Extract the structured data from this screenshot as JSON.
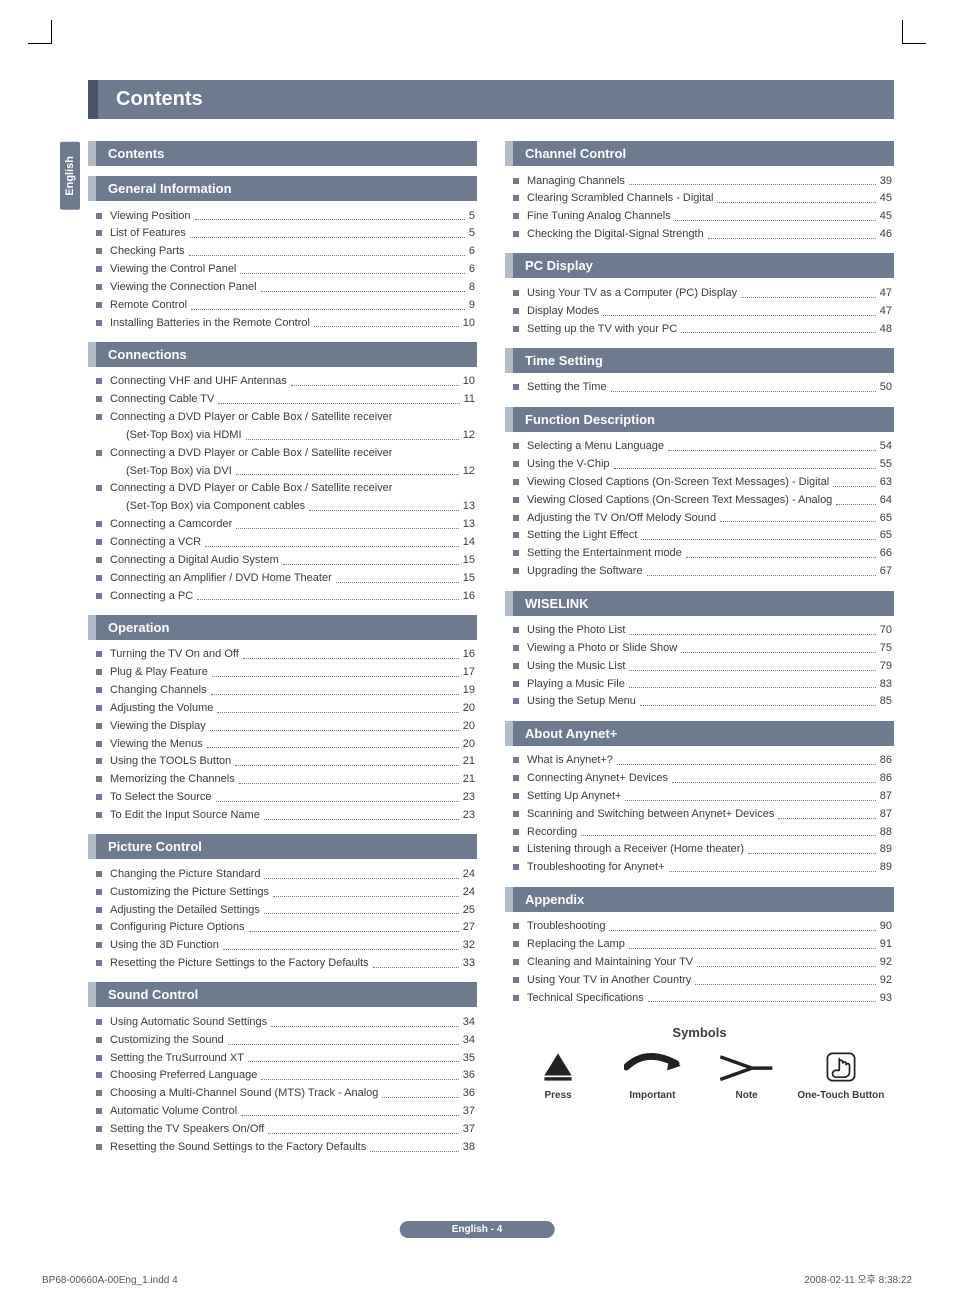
{
  "lang_tab": "English",
  "title": "Contents",
  "footer_pill": "English - 4",
  "print_footer_left": "BP68-00660A-00Eng_1.indd   4",
  "print_footer_right": "2008-02-11   오후 8:38:22",
  "symbols": {
    "heading": "Symbols",
    "items": [
      {
        "label": "Press"
      },
      {
        "label": "Important"
      },
      {
        "label": "Note"
      },
      {
        "label": "One-Touch Button"
      }
    ]
  },
  "left": [
    {
      "head": "Contents",
      "items": []
    },
    {
      "head": "General Information",
      "items": [
        {
          "t": "Viewing Position",
          "p": "5"
        },
        {
          "t": "List of Features",
          "p": "5"
        },
        {
          "t": "Checking Parts",
          "p": "6"
        },
        {
          "t": "Viewing the Control Panel",
          "p": "6"
        },
        {
          "t": "Viewing the Connection Panel",
          "p": "8"
        },
        {
          "t": "Remote Control",
          "p": "9"
        },
        {
          "t": "Installing Batteries in the Remote Control",
          "p": "10"
        }
      ]
    },
    {
      "head": "Connections",
      "items": [
        {
          "t": "Connecting VHF and UHF Antennas",
          "p": "10"
        },
        {
          "t": "Connecting Cable TV",
          "p": "11"
        },
        {
          "t": "Connecting a DVD Player or Cable Box / Satellite receiver",
          "nopage": true
        },
        {
          "t": "(Set-Top Box) via HDMI",
          "p": "12",
          "sub": true
        },
        {
          "t": "Connecting a DVD Player or Cable Box / Satellite receiver",
          "nopage": true
        },
        {
          "t": "(Set-Top Box) via DVI",
          "p": "12",
          "sub": true
        },
        {
          "t": "Connecting a DVD Player or Cable Box / Satellite receiver",
          "nopage": true
        },
        {
          "t": "(Set-Top Box) via Component cables",
          "p": "13",
          "sub": true
        },
        {
          "t": "Connecting a Camcorder",
          "p": "13"
        },
        {
          "t": "Connecting a VCR",
          "p": "14"
        },
        {
          "t": "Connecting a Digital Audio System",
          "p": "15"
        },
        {
          "t": "Connecting an Amplifier / DVD Home Theater",
          "p": "15"
        },
        {
          "t": "Connecting a PC",
          "p": "16"
        }
      ]
    },
    {
      "head": "Operation",
      "items": [
        {
          "t": "Turning the TV On and Off",
          "p": "16"
        },
        {
          "t": "Plug & Play Feature",
          "p": "17"
        },
        {
          "t": "Changing Channels",
          "p": "19"
        },
        {
          "t": "Adjusting the Volume",
          "p": "20"
        },
        {
          "t": "Viewing the Display",
          "p": "20"
        },
        {
          "t": "Viewing the Menus",
          "p": "20"
        },
        {
          "t": "Using the TOOLS Button",
          "p": "21"
        },
        {
          "t": "Memorizing the Channels",
          "p": "21"
        },
        {
          "t": "To Select the Source",
          "p": "23"
        },
        {
          "t": "To Edit the Input Source Name",
          "p": "23"
        }
      ]
    },
    {
      "head": "Picture Control",
      "items": [
        {
          "t": "Changing the Picture Standard",
          "p": "24"
        },
        {
          "t": "Customizing the Picture Settings",
          "p": "24"
        },
        {
          "t": "Adjusting the Detailed Settings",
          "p": "25"
        },
        {
          "t": "Configuring Picture Options",
          "p": "27"
        },
        {
          "t": "Using the 3D Function",
          "p": "32"
        },
        {
          "t": "Resetting the Picture Settings to the Factory Defaults",
          "p": "33"
        }
      ]
    },
    {
      "head": "Sound Control",
      "items": [
        {
          "t": "Using Automatic Sound Settings",
          "p": "34"
        },
        {
          "t": "Customizing the Sound",
          "p": "34"
        },
        {
          "t": "Setting the TruSurround XT",
          "p": "35"
        },
        {
          "t": "Choosing Preferred Language",
          "p": "36"
        },
        {
          "t": "Choosing a Multi-Channel Sound (MTS) Track - Analog",
          "p": "36"
        },
        {
          "t": "Automatic Volume Control",
          "p": "37"
        },
        {
          "t": "Setting the TV Speakers On/Off",
          "p": "37"
        },
        {
          "t": "Resetting the Sound Settings to the Factory Defaults",
          "p": "38"
        }
      ]
    }
  ],
  "right": [
    {
      "head": "Channel Control",
      "items": [
        {
          "t": "Managing Channels",
          "p": "39"
        },
        {
          "t": "Clearing Scrambled Channels - Digital",
          "p": "45"
        },
        {
          "t": "Fine Tuning Analog Channels",
          "p": "45"
        },
        {
          "t": "Checking the Digital-Signal Strength",
          "p": "46"
        }
      ]
    },
    {
      "head": "PC Display",
      "items": [
        {
          "t": "Using Your TV as a Computer (PC) Display",
          "p": "47"
        },
        {
          "t": "Display Modes",
          "p": "47"
        },
        {
          "t": "Setting up the TV with your PC",
          "p": "48"
        }
      ]
    },
    {
      "head": "Time Setting",
      "items": [
        {
          "t": "Setting the Time",
          "p": "50"
        }
      ]
    },
    {
      "head": "Function Description",
      "items": [
        {
          "t": "Selecting a Menu Language",
          "p": "54"
        },
        {
          "t": "Using the V-Chip",
          "p": "55"
        },
        {
          "t": "Viewing Closed Captions (On-Screen Text Messages) - Digital",
          "p": "63"
        },
        {
          "t": "Viewing Closed Captions (On-Screen Text Messages) - Analog",
          "p": "64"
        },
        {
          "t": "Adjusting the TV On/Off Melody Sound",
          "p": "65"
        },
        {
          "t": "Setting the Light Effect",
          "p": "65"
        },
        {
          "t": "Setting the Entertainment mode",
          "p": "66"
        },
        {
          "t": "Upgrading the Software",
          "p": "67"
        }
      ]
    },
    {
      "head": "WISELINK",
      "items": [
        {
          "t": "Using the Photo List",
          "p": "70"
        },
        {
          "t": "Viewing a Photo or Slide Show",
          "p": "75"
        },
        {
          "t": "Using the Music List",
          "p": "79"
        },
        {
          "t": "Playing a Music File",
          "p": "83"
        },
        {
          "t": "Using the Setup Menu",
          "p": "85"
        }
      ]
    },
    {
      "head": "About Anynet+",
      "items": [
        {
          "t": "What is Anynet+?",
          "p": "86"
        },
        {
          "t": "Connecting Anynet+ Devices",
          "p": "86"
        },
        {
          "t": "Setting Up Anynet+",
          "p": "87"
        },
        {
          "t": "Scanning and Switching between Anynet+ Devices",
          "p": "87"
        },
        {
          "t": "Recording",
          "p": "88"
        },
        {
          "t": "Listening through a Receiver (Home theater)",
          "p": "89"
        },
        {
          "t": "Troubleshooting for Anynet+",
          "p": "89"
        }
      ]
    },
    {
      "head": "Appendix",
      "items": [
        {
          "t": "Troubleshooting",
          "p": "90"
        },
        {
          "t": "Replacing the Lamp",
          "p": "91"
        },
        {
          "t": "Cleaning and Maintaining Your TV",
          "p": "92"
        },
        {
          "t": "Using Your TV in Another Country",
          "p": "92"
        },
        {
          "t": "Technical Specifications",
          "p": "93"
        }
      ]
    }
  ]
}
